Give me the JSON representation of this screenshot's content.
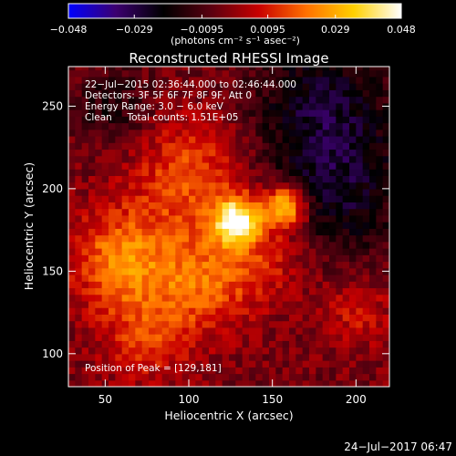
{
  "chart_data": {
    "type": "heatmap",
    "title": "Reconstructed RHESSI Image",
    "xlabel": "Heliocentric X (arcsec)",
    "ylabel": "Heliocentric Y (arcsec)",
    "xlim": [
      28,
      220
    ],
    "ylim": [
      80,
      274
    ],
    "x_ticks": [
      50,
      100,
      150,
      200
    ],
    "y_ticks": [
      100,
      150,
      200,
      250
    ],
    "colorbar": {
      "range": [
        -0.048,
        0.048
      ],
      "tick_values": [
        -0.048,
        -0.029,
        -0.0095,
        0.0095,
        0.029,
        0.048
      ],
      "tick_labels": [
        "−0.048",
        "−0.029",
        "−0.0095",
        "0.0095",
        "0.029",
        "0.048"
      ],
      "units": "(photons cm⁻² s⁻¹ asec⁻²)",
      "colors": [
        "#0000ff",
        "#3c0070",
        "#000000",
        "#5a0010",
        "#c80000",
        "#ff7000",
        "#ffd000",
        "#ffffff"
      ]
    },
    "annotations": [
      "22−Jul−2015 02:36:44.000 to 02:46:44.000",
      "Detectors: 3F 5F 6F 7F 8F 9F, Att 0",
      "Energy Range: 3.0 − 6.0 keV",
      "Clean     Total counts: 1.51E+05"
    ],
    "peak_label": "Position of Peak = [129,181]",
    "peak_position": [
      129,
      181
    ],
    "sources": [
      {
        "x": 129,
        "y": 181,
        "peak": 0.048,
        "radius": 10
      },
      {
        "x": 158,
        "y": 190,
        "peak": 0.042,
        "radius": 9
      },
      {
        "x": 60,
        "y": 158,
        "peak": 0.026,
        "radius": 22
      },
      {
        "x": 100,
        "y": 210,
        "peak": 0.02,
        "radius": 24
      },
      {
        "x": 110,
        "y": 145,
        "peak": 0.022,
        "radius": 22
      },
      {
        "x": 75,
        "y": 110,
        "peak": 0.015,
        "radius": 20
      },
      {
        "x": 150,
        "y": 160,
        "peak": 0.012,
        "radius": 18
      },
      {
        "x": 200,
        "y": 125,
        "peak": 0.012,
        "radius": 16
      },
      {
        "x": 190,
        "y": 195,
        "peak": -0.018,
        "radius": 28
      },
      {
        "x": 180,
        "y": 250,
        "peak": -0.02,
        "radius": 30
      },
      {
        "x": 55,
        "y": 250,
        "peak": -0.012,
        "radius": 18
      }
    ]
  },
  "footer": {
    "timestamp": "24−Jul−2017 06:47"
  }
}
